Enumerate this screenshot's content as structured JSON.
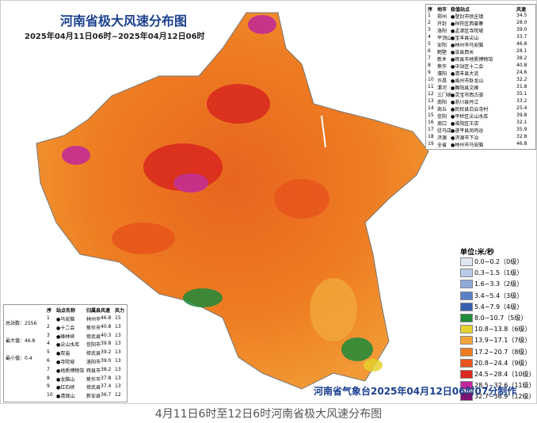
{
  "title": "河南省极大风速分布图",
  "subtitle": "2025年04月11日06时~2025年04月12日06时",
  "province_table": {
    "headers": [
      "序",
      "地市",
      "极值站点",
      "风速"
    ],
    "rows": [
      [
        "1",
        "郑州",
        "●登封市徐庄镇",
        "34.5"
      ],
      [
        "2",
        "开封",
        "●祥符区西姜寨",
        "28.0"
      ],
      [
        "3",
        "洛阳",
        "●孟津区寺院坡",
        "39.0"
      ],
      [
        "4",
        "平顶山",
        "●宝丰县尖山",
        "33.7"
      ],
      [
        "5",
        "安阳",
        "●林州市马安脑",
        "46.8"
      ],
      [
        "6",
        "鹤壁",
        "●浚县西长",
        "28.1"
      ],
      [
        "7",
        "新乡",
        "●辉县市地质博物馆",
        "38.2"
      ],
      [
        "8",
        "焦作",
        "●中站区十二会",
        "40.8"
      ],
      [
        "9",
        "濮阳",
        "●清丰县大流",
        "24.6"
      ],
      [
        "10",
        "许昌",
        "●禹州市卧龙山",
        "32.2"
      ],
      [
        "11",
        "漯河",
        "●舞阳县文峰",
        "31.8"
      ],
      [
        "12",
        "三门峡",
        "●灵宝市西古驿",
        "35.1"
      ],
      [
        "13",
        "南阳",
        "●淅川县丹江",
        "33.2"
      ],
      [
        "14",
        "商丘",
        "●民权县白云寺村",
        "25.4"
      ],
      [
        "15",
        "信阳",
        "●平桥区尖山水库",
        "39.8"
      ],
      [
        "16",
        "周口",
        "●淮阳区王店",
        "32.1"
      ],
      [
        "17",
        "驻马店",
        "●遂平县凤鸣谷",
        "35.9"
      ],
      [
        "18",
        "济源",
        "●济源市下冶",
        "32.8"
      ],
      [
        "19",
        "全省",
        "●林州市马安脑",
        "46.8"
      ]
    ]
  },
  "station_table": {
    "headers": [
      "序",
      "站点名称",
      "归属县",
      "风速",
      "风力"
    ],
    "rows": [
      [
        "1",
        "●马安脑",
        "林州市",
        "46.8",
        "15"
      ],
      [
        "2",
        "●十二会",
        "焦作市",
        "40.8",
        "13"
      ],
      [
        "3",
        "●峰林峡",
        "修武县",
        "40.3",
        "13"
      ],
      [
        "4",
        "●尖山水库",
        "信阳市",
        "39.8",
        "13"
      ],
      [
        "5",
        "●双庙",
        "修武县",
        "39.2",
        "13"
      ],
      [
        "6",
        "●寺院坡",
        "洛阳市",
        "39.0",
        "13"
      ],
      [
        "7",
        "●地质博物馆",
        "辉县市",
        "38.2",
        "13"
      ],
      [
        "8",
        "●龙脑山",
        "焦作市",
        "37.8",
        "13"
      ],
      [
        "9",
        "●红石峡",
        "修武县",
        "37.4",
        "13"
      ],
      [
        "10",
        "●清观山",
        "新安县",
        "36.7",
        "12"
      ]
    ]
  },
  "stats": [
    "总站数：2556",
    "最大值：46.8",
    "最小值：0.4"
  ],
  "legend": {
    "unit": "单位:米/秒",
    "items": [
      {
        "label": "0.0~0.2（0级）",
        "color": "#dfe6f2"
      },
      {
        "label": "0.3~1.5（1级）",
        "color": "#b9cbe8"
      },
      {
        "label": "1.6~3.3（2级）",
        "color": "#8fa9d9"
      },
      {
        "label": "3.4~5.4（3级）",
        "color": "#5b7fc6"
      },
      {
        "label": "5.4~7.9（4级）",
        "color": "#3a5fb0"
      },
      {
        "label": "8.0~10.7（5级）",
        "color": "#1f8a3a"
      },
      {
        "label": "10.8~13.8（6级）",
        "color": "#e6d22e"
      },
      {
        "label": "13.9~17.1（7级）",
        "color": "#f2a63a"
      },
      {
        "label": "17.2~20.7（8级）",
        "color": "#ee7d22"
      },
      {
        "label": "20.8~24.4（9级）",
        "color": "#e8551c"
      },
      {
        "label": "24.5~28.4（10级）",
        "color": "#d9281e"
      },
      {
        "label": "28.5~32.6（11级）",
        "color": "#c0279a"
      },
      {
        "label": "32.7~36.9（12级）",
        "color": "#7a1470"
      }
    ]
  },
  "credit": "河南省气象台2025年04月12日06时07分制作",
  "caption": "4月11日6时至12日6时河南省极大风速分布图"
}
